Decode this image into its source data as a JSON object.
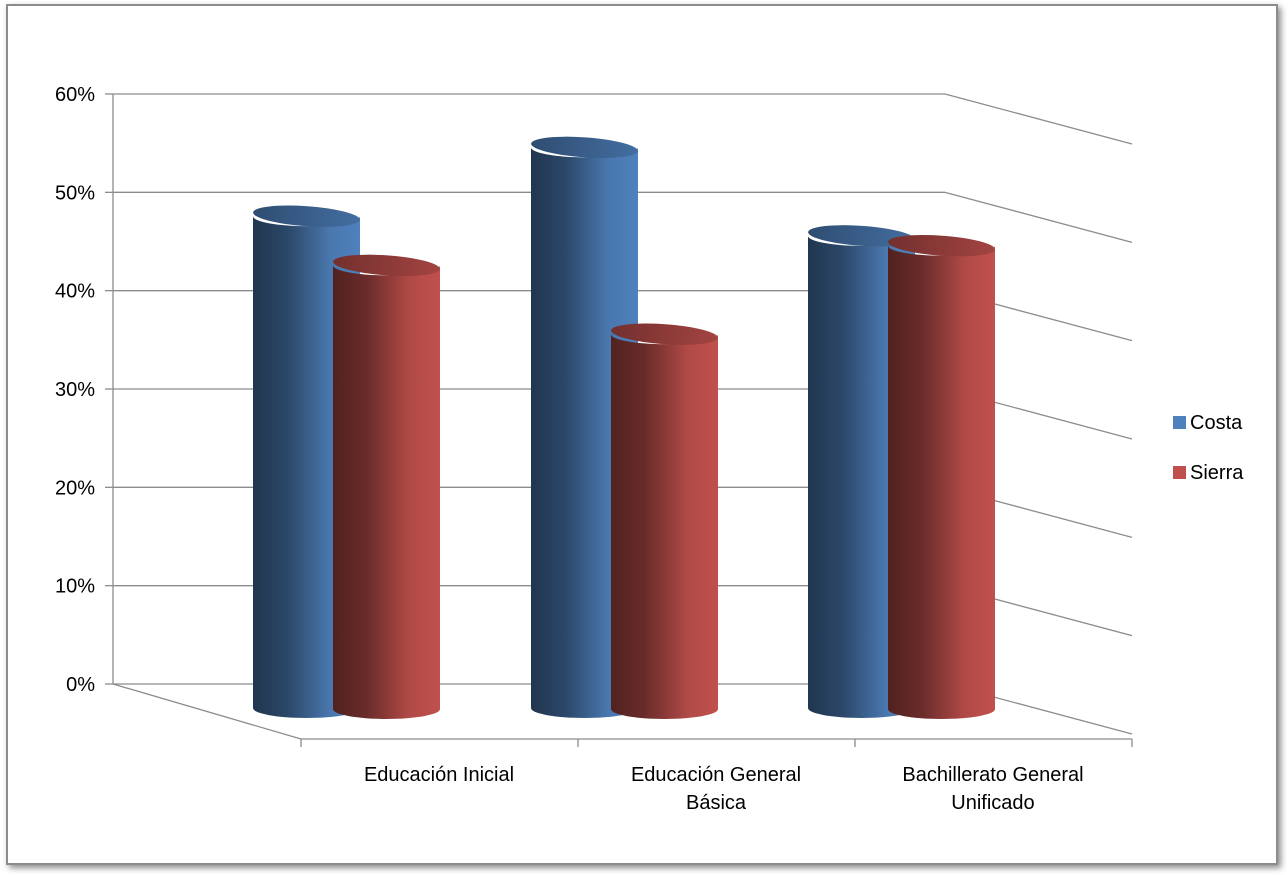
{
  "chart_data": {
    "type": "bar",
    "categories": [
      [
        "Educación Inicial"
      ],
      [
        "Educación General",
        "Básica"
      ],
      [
        "Bachillerato General",
        "Unificado"
      ]
    ],
    "series": [
      {
        "name": "Costa",
        "values": [
          49,
          56,
          47
        ],
        "color": "#4f81bd"
      },
      {
        "name": "Sierra",
        "values": [
          44,
          37,
          46
        ],
        "color": "#c0504d"
      }
    ],
    "y_ticks": [
      "0%",
      "10%",
      "20%",
      "30%",
      "40%",
      "50%",
      "60%"
    ],
    "ylim": [
      0,
      60
    ],
    "grid": true,
    "legend": "right",
    "style": "3d-cylinder"
  }
}
